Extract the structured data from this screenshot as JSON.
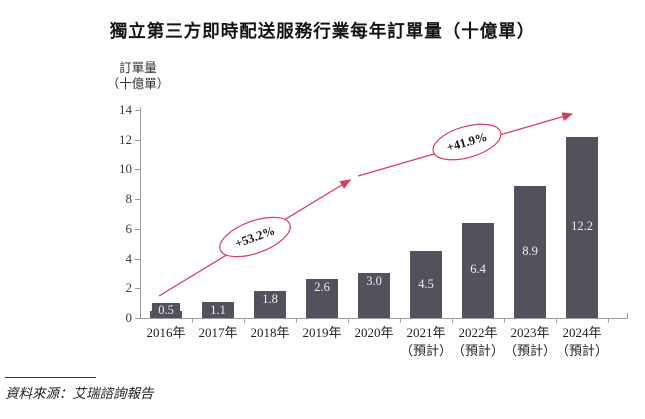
{
  "chart_data": {
    "type": "bar",
    "title": "獨立第三方即時配送服務行業每年訂單量（十億單）",
    "ylabel_line1": "訂單量",
    "ylabel_line2": "（十億單）",
    "xlabel": "",
    "categories": [
      "2016年",
      "2017年",
      "2018年",
      "2019年",
      "2020年",
      "2021年",
      "2022年",
      "2023年",
      "2024年"
    ],
    "category_notes": [
      "",
      "",
      "",
      "",
      "",
      "（預計）",
      "（預計）",
      "（預計）",
      "（預計）"
    ],
    "values": [
      0.5,
      1.1,
      1.8,
      2.6,
      3.0,
      4.5,
      6.4,
      8.9,
      12.2
    ],
    "value_labels": [
      "0.5",
      "1.1",
      "1.8",
      "2.6",
      "3.0",
      "4.5",
      "6.4",
      "8.9",
      "12.2"
    ],
    "yticks": [
      0,
      2,
      4,
      6,
      8,
      10,
      12,
      14
    ],
    "ylim": [
      0,
      14
    ],
    "grid": false,
    "legend": "none",
    "bar_color": "#54515c",
    "value_label_color": "#eeedf1",
    "trend": {
      "color": "#d63e5e",
      "segments": [
        {
          "label": "+53.2%"
        },
        {
          "label": "+41.9%"
        }
      ]
    }
  },
  "footer": {
    "source": "資料來源：艾瑞諮詢報告"
  }
}
